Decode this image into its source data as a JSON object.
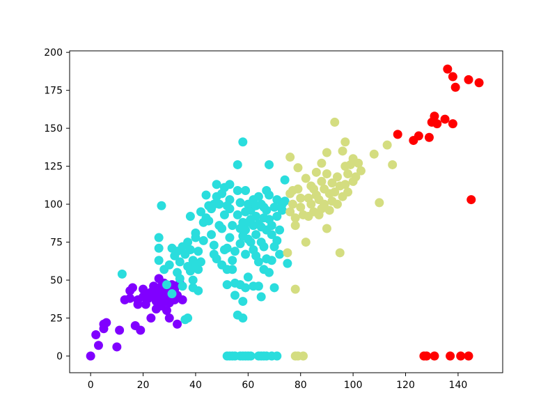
{
  "chart_data": {
    "type": "scatter",
    "title": "",
    "xlabel": "",
    "ylabel": "",
    "xlim": [
      -8,
      157
    ],
    "ylim": [
      -11,
      201
    ],
    "xticks": [
      0,
      20,
      40,
      60,
      80,
      100,
      120,
      140
    ],
    "yticks": [
      0,
      25,
      50,
      75,
      100,
      125,
      150,
      175,
      200
    ],
    "grid": false,
    "legend": "none",
    "series": [
      {
        "color": "#8000ff",
        "points": [
          [
            0,
            0
          ],
          [
            2,
            14
          ],
          [
            3,
            7
          ],
          [
            5,
            18
          ],
          [
            5,
            21
          ],
          [
            6,
            22
          ],
          [
            10,
            6
          ],
          [
            11,
            17
          ],
          [
            13,
            37
          ],
          [
            15,
            38
          ],
          [
            15,
            43
          ],
          [
            16,
            45
          ],
          [
            17,
            20
          ],
          [
            18,
            37
          ],
          [
            18,
            34
          ],
          [
            19,
            17
          ],
          [
            20,
            39
          ],
          [
            20,
            44
          ],
          [
            21,
            41
          ],
          [
            21,
            34
          ],
          [
            22,
            38
          ],
          [
            23,
            42
          ],
          [
            23,
            25
          ],
          [
            24,
            46
          ],
          [
            24,
            40
          ],
          [
            25,
            36
          ],
          [
            25,
            31
          ],
          [
            25,
            45
          ],
          [
            26,
            38
          ],
          [
            26,
            51
          ],
          [
            26,
            42
          ],
          [
            27,
            33
          ],
          [
            27,
            46
          ],
          [
            28,
            40
          ],
          [
            28,
            36
          ],
          [
            28,
            48
          ],
          [
            29,
            43
          ],
          [
            29,
            30
          ],
          [
            29,
            38
          ],
          [
            30,
            35
          ],
          [
            30,
            41
          ],
          [
            30,
            45
          ],
          [
            30,
            25
          ],
          [
            31,
            39
          ],
          [
            31,
            47
          ],
          [
            32,
            37
          ],
          [
            32,
            44
          ],
          [
            33,
            21
          ],
          [
            33,
            40
          ],
          [
            34,
            48
          ],
          [
            35,
            37
          ]
        ]
      },
      {
        "color": "#2adddd",
        "points": [
          [
            12,
            54
          ],
          [
            26,
            63
          ],
          [
            26,
            71
          ],
          [
            26,
            78
          ],
          [
            27,
            99
          ],
          [
            28,
            57
          ],
          [
            29,
            47
          ],
          [
            30,
            60
          ],
          [
            31,
            71
          ],
          [
            31,
            41
          ],
          [
            32,
            66
          ],
          [
            33,
            55
          ],
          [
            33,
            69
          ],
          [
            34,
            62
          ],
          [
            34,
            51
          ],
          [
            35,
            72
          ],
          [
            35,
            46
          ],
          [
            36,
            24
          ],
          [
            36,
            67
          ],
          [
            37,
            25
          ],
          [
            37,
            59
          ],
          [
            37,
            75
          ],
          [
            38,
            70
          ],
          [
            38,
            56
          ],
          [
            38,
            92
          ],
          [
            39,
            45
          ],
          [
            39,
            63
          ],
          [
            39,
            50
          ],
          [
            40,
            78
          ],
          [
            40,
            59
          ],
          [
            40,
            81
          ],
          [
            41,
            69
          ],
          [
            41,
            57
          ],
          [
            41,
            43
          ],
          [
            42,
            95
          ],
          [
            42,
            62
          ],
          [
            43,
            76
          ],
          [
            43,
            88
          ],
          [
            44,
            106
          ],
          [
            44,
            91
          ],
          [
            45,
            89
          ],
          [
            45,
            99
          ],
          [
            46,
            97
          ],
          [
            46,
            80
          ],
          [
            47,
            73
          ],
          [
            47,
            100
          ],
          [
            47,
            67
          ],
          [
            48,
            113
          ],
          [
            48,
            64
          ],
          [
            48,
            105
          ],
          [
            49,
            100
          ],
          [
            49,
            86
          ],
          [
            50,
            107
          ],
          [
            50,
            84
          ],
          [
            50,
            60
          ],
          [
            51,
            70
          ],
          [
            51,
            111
          ],
          [
            51,
            93
          ],
          [
            52,
            71
          ],
          [
            52,
            99
          ],
          [
            52,
            57
          ],
          [
            52,
            47
          ],
          [
            53,
            113
          ],
          [
            53,
            97
          ],
          [
            53,
            78
          ],
          [
            53,
            103
          ],
          [
            54,
            86
          ],
          [
            54,
            63
          ],
          [
            54,
            57
          ],
          [
            55,
            40
          ],
          [
            55,
            69
          ],
          [
            55,
            48
          ],
          [
            56,
            126
          ],
          [
            56,
            109
          ],
          [
            56,
            93
          ],
          [
            56,
            27
          ],
          [
            57,
            84
          ],
          [
            57,
            101
          ],
          [
            57,
            47
          ],
          [
            57,
            74
          ],
          [
            58,
            141
          ],
          [
            58,
            88
          ],
          [
            58,
            79
          ],
          [
            58,
            36
          ],
          [
            58,
            25
          ],
          [
            59,
            109
          ],
          [
            59,
            95
          ],
          [
            59,
            83
          ],
          [
            59,
            67
          ],
          [
            59,
            45
          ],
          [
            60,
            100
          ],
          [
            60,
            88
          ],
          [
            60,
            77
          ],
          [
            60,
            52
          ],
          [
            61,
            96
          ],
          [
            61,
            90
          ],
          [
            61,
            75
          ],
          [
            62,
            103
          ],
          [
            62,
            86
          ],
          [
            62,
            70
          ],
          [
            62,
            46
          ],
          [
            63,
            99
          ],
          [
            63,
            80
          ],
          [
            63,
            66
          ],
          [
            63,
            92
          ],
          [
            64,
            87
          ],
          [
            64,
            62
          ],
          [
            64,
            105
          ],
          [
            64,
            46
          ],
          [
            65,
            85
          ],
          [
            65,
            100
          ],
          [
            65,
            75
          ],
          [
            65,
            39
          ],
          [
            66,
            91
          ],
          [
            66,
            72
          ],
          [
            66,
            98
          ],
          [
            66,
            57
          ],
          [
            67,
            83
          ],
          [
            67,
            109
          ],
          [
            67,
            64
          ],
          [
            67,
            96
          ],
          [
            68,
            126
          ],
          [
            68,
            90
          ],
          [
            68,
            55
          ],
          [
            68,
            106
          ],
          [
            69,
            80
          ],
          [
            69,
            63
          ],
          [
            69,
            86
          ],
          [
            70,
            98
          ],
          [
            70,
            45
          ],
          [
            70,
            72
          ],
          [
            71,
            92
          ],
          [
            71,
            76
          ],
          [
            71,
            103
          ],
          [
            72,
            83
          ],
          [
            72,
            67
          ],
          [
            73,
            100
          ],
          [
            73,
            96
          ],
          [
            74,
            116
          ],
          [
            74,
            102
          ],
          [
            75,
            61
          ]
        ]
      },
      {
        "color": "#d4dd80",
        "points": [
          [
            75,
            68
          ],
          [
            76,
            131
          ],
          [
            76,
            107
          ],
          [
            76,
            95
          ],
          [
            77,
            109
          ],
          [
            77,
            100
          ],
          [
            78,
            44
          ],
          [
            78,
            91
          ],
          [
            78,
            86
          ],
          [
            79,
            124
          ],
          [
            79,
            110
          ],
          [
            80,
            104
          ],
          [
            80,
            98
          ],
          [
            81,
            93
          ],
          [
            82,
            75
          ],
          [
            82,
            117
          ],
          [
            83,
            104
          ],
          [
            83,
            92
          ],
          [
            84,
            112
          ],
          [
            84,
            100
          ],
          [
            85,
            110
          ],
          [
            85,
            95
          ],
          [
            86,
            121
          ],
          [
            86,
            106
          ],
          [
            87,
            103
          ],
          [
            87,
            93
          ],
          [
            88,
            127
          ],
          [
            88,
            115
          ],
          [
            88,
            97
          ],
          [
            89,
            110
          ],
          [
            89,
            100
          ],
          [
            90,
            134
          ],
          [
            90,
            84
          ],
          [
            90,
            120
          ],
          [
            91,
            107
          ],
          [
            91,
            96
          ],
          [
            92,
            114
          ],
          [
            92,
            102
          ],
          [
            93,
            154
          ],
          [
            93,
            108
          ],
          [
            94,
            100
          ],
          [
            94,
            118
          ],
          [
            95,
            68
          ],
          [
            95,
            112
          ],
          [
            96,
            135
          ],
          [
            96,
            105
          ],
          [
            97,
            141
          ],
          [
            97,
            125
          ],
          [
            97,
            113
          ],
          [
            98,
            108
          ],
          [
            98,
            120
          ],
          [
            99,
            126
          ],
          [
            100,
            115
          ],
          [
            100,
            130
          ],
          [
            101,
            118
          ],
          [
            102,
            127
          ],
          [
            103,
            122
          ],
          [
            108,
            133
          ],
          [
            110,
            101
          ],
          [
            113,
            139
          ],
          [
            115,
            126
          ]
        ]
      },
      {
        "color": "#ff0000",
        "points": [
          [
            117,
            146
          ],
          [
            123,
            142
          ],
          [
            125,
            145
          ],
          [
            129,
            144
          ],
          [
            130,
            154
          ],
          [
            131,
            158
          ],
          [
            132,
            153
          ],
          [
            135,
            156
          ],
          [
            136,
            189
          ],
          [
            138,
            153
          ],
          [
            138,
            184
          ],
          [
            139,
            177
          ],
          [
            144,
            182
          ],
          [
            145,
            103
          ],
          [
            148,
            180
          ]
        ]
      }
    ],
    "zero_row": [
      {
        "color": "#2adddd",
        "x": [
          52,
          53,
          54,
          55,
          57,
          58,
          59,
          60,
          61,
          64,
          65,
          66,
          67,
          69,
          71
        ]
      },
      {
        "color": "#d4dd80",
        "x": [
          78,
          79,
          81
        ]
      },
      {
        "color": "#ff0000",
        "x": [
          127,
          128,
          131,
          137,
          141,
          144
        ]
      }
    ]
  }
}
